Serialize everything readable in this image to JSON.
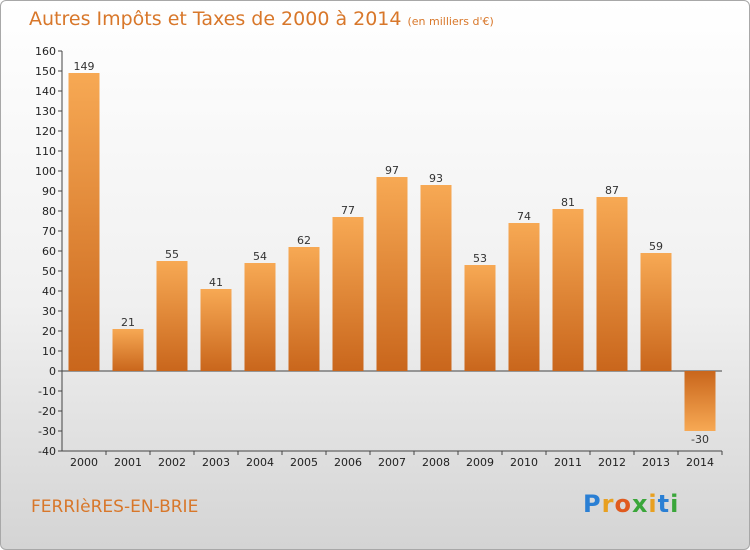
{
  "title": "Autres Impôts et Taxes de 2000 à 2014",
  "unit": "(en milliers d'€)",
  "city": "FERRIèRES-EN-BRIE",
  "logo": {
    "letters": [
      "P",
      "r",
      "o",
      "x",
      "i",
      "t",
      "i"
    ],
    "colors": [
      "#2a7fd4",
      "#e8a020",
      "#e05a1e",
      "#3aa63a",
      "#e8a020",
      "#2a7fd4",
      "#3aa63a"
    ]
  },
  "colors": {
    "bar_light": "#f7a954",
    "bar_dark": "#c9661c",
    "text_orange": "#d8772a"
  },
  "chart_data": {
    "type": "bar",
    "categories": [
      "2000",
      "2001",
      "2002",
      "2003",
      "2004",
      "2005",
      "2006",
      "2007",
      "2008",
      "2009",
      "2010",
      "2011",
      "2012",
      "2013",
      "2014"
    ],
    "values": [
      149,
      21,
      55,
      41,
      54,
      62,
      77,
      97,
      93,
      53,
      74,
      81,
      87,
      59,
      -30
    ],
    "title": "Autres Impôts et Taxes de 2000 à 2014",
    "ylim": [
      -40,
      160
    ],
    "yticks": [
      160,
      150,
      140,
      130,
      120,
      110,
      100,
      90,
      80,
      70,
      60,
      50,
      40,
      30,
      20,
      10,
      0,
      -10,
      -20,
      -30,
      -40
    ],
    "grid": false,
    "legend": "none"
  }
}
